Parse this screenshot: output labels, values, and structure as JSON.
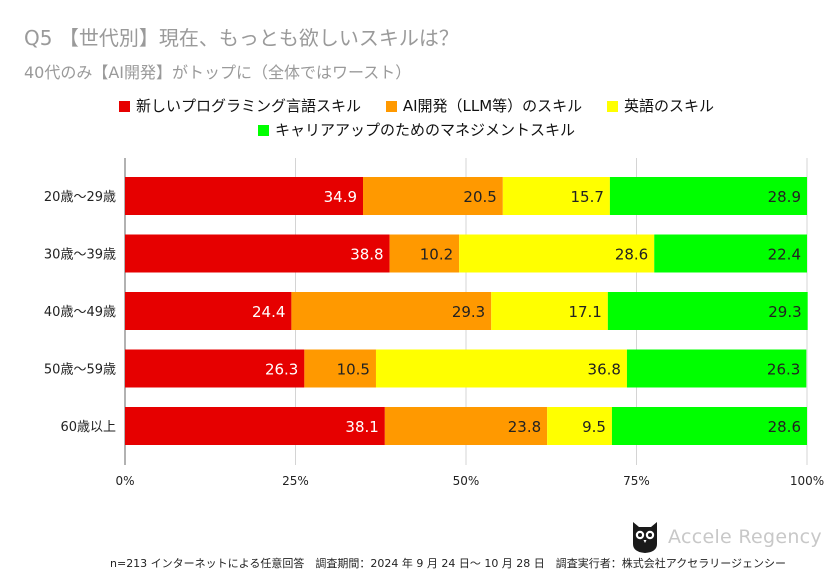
{
  "title": "Q5 【世代別】現在、もっとも欲しいスキルは？",
  "subtitle": "40代のみ【AI開発】がトップに（全体ではワースト）",
  "legend": [
    {
      "label": "新しいプログラミング言語スキル",
      "color": "#e60000"
    },
    {
      "label": "AI開発（LLM等）のスキル",
      "color": "#ff9900"
    },
    {
      "label": "英語のスキル",
      "color": "#ffff00"
    },
    {
      "label": "キャリアアップのためのマネジメントスキル",
      "color": "#00ff00"
    }
  ],
  "chart_data": {
    "type": "bar",
    "orientation": "horizontal",
    "stacked": true,
    "categories": [
      "20歳〜29歳",
      "30歳〜39歳",
      "40歳〜49歳",
      "50歳〜59歳",
      "60歳以上"
    ],
    "series": [
      {
        "name": "新しいプログラミング言語スキル",
        "color": "#e60000",
        "label_color": "#ffffff",
        "values": [
          34.9,
          38.8,
          24.4,
          26.3,
          38.1
        ]
      },
      {
        "name": "AI開発（LLM等）のスキル",
        "color": "#ff9900",
        "label_color": "#222222",
        "values": [
          20.5,
          10.2,
          29.3,
          10.5,
          23.8
        ]
      },
      {
        "name": "英語のスキル",
        "color": "#ffff00",
        "label_color": "#222222",
        "values": [
          15.7,
          28.6,
          17.1,
          36.8,
          9.5
        ]
      },
      {
        "name": "キャリアアップのためのマネジメントスキル",
        "color": "#00ff00",
        "label_color": "#222222",
        "values": [
          28.9,
          22.4,
          29.3,
          26.3,
          28.6
        ]
      }
    ],
    "x_ticks": [
      "0%",
      "25%",
      "50%",
      "75%",
      "100%"
    ],
    "xlim": [
      0,
      100
    ],
    "grid": true
  },
  "footer": {
    "note": "n=213 インターネットによる任意回答　調査期間：2024 年 9 月 24 日〜 10 月 28 日　調査実行者：株式会社アクセラリージェンシー",
    "brand": "Accele Regency"
  }
}
